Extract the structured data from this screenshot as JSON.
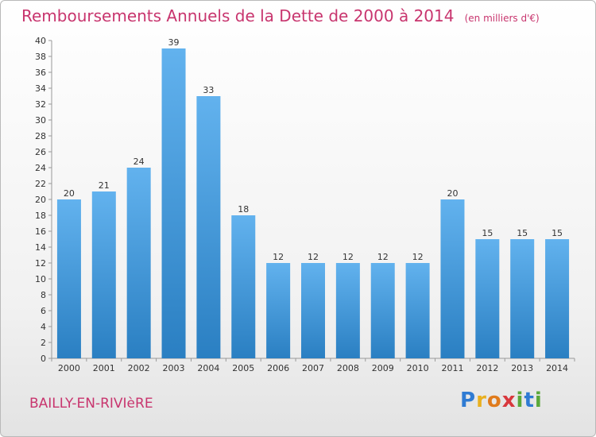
{
  "header": {
    "title": "Remboursements Annuels de la Dette de 2000 à 2014",
    "unit": "(en milliers d'€)"
  },
  "footer": {
    "commune": "BAILLY-EN-RIVIèRE",
    "brand_letters": [
      {
        "ch": "P",
        "color": "#2f7bd3"
      },
      {
        "ch": "r",
        "color": "#e9b020"
      },
      {
        "ch": "o",
        "color": "#e07b1c"
      },
      {
        "ch": "x",
        "color": "#d8383d"
      },
      {
        "ch": "i",
        "color": "#5aa83a"
      },
      {
        "ch": "t",
        "color": "#2f7bd3"
      },
      {
        "ch": "i",
        "color": "#5aa83a"
      }
    ]
  },
  "chart_data": {
    "type": "bar",
    "title": "Remboursements Annuels de la Dette de 2000 à 2014",
    "categories": [
      "2000",
      "2001",
      "2002",
      "2003",
      "2004",
      "2005",
      "2006",
      "2007",
      "2008",
      "2009",
      "2010",
      "2011",
      "2012",
      "2013",
      "2014"
    ],
    "values": [
      20,
      21,
      24,
      39,
      33,
      18,
      12,
      12,
      12,
      12,
      12,
      20,
      15,
      15,
      15
    ],
    "ylim": [
      0,
      40
    ],
    "ytick_step": 2,
    "grid": false,
    "bar_color_top": "#62b2ee",
    "bar_color_bottom": "#2a7fc2"
  }
}
